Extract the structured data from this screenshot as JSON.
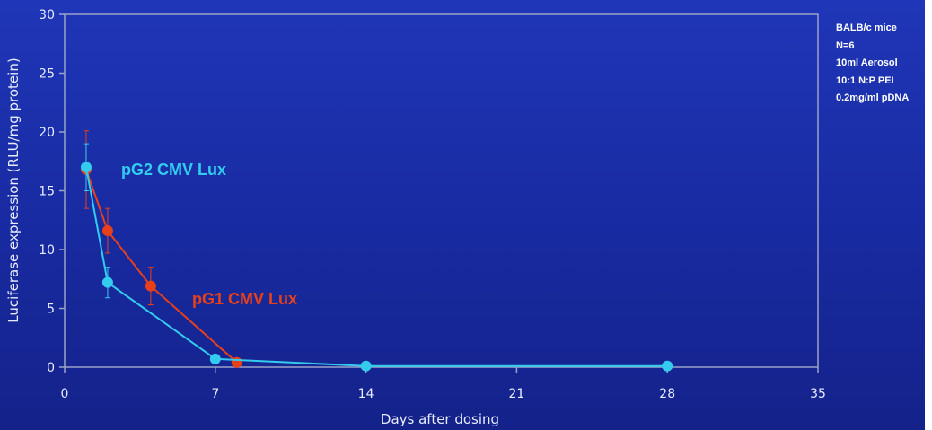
{
  "chart_data": {
    "type": "line",
    "title": "",
    "xlabel": "Days after dosing",
    "ylabel": "Luciferase expression (RLU/mg protein)",
    "xlim": [
      0,
      35
    ],
    "ylim": [
      0,
      30
    ],
    "xticks": [
      0,
      7,
      14,
      21,
      28,
      35
    ],
    "yticks": [
      0,
      5,
      10,
      15,
      20,
      25,
      30
    ],
    "grid": false,
    "series": [
      {
        "name": "pG1 CMV Lux",
        "color": "#e8401a",
        "x": [
          1,
          2,
          4,
          8
        ],
        "y": [
          16.8,
          11.6,
          6.9,
          0.4
        ],
        "error": [
          3.3,
          1.9,
          1.6,
          0
        ]
      },
      {
        "name": "pG2 CMV Lux",
        "color": "#33ccee",
        "x": [
          1,
          2,
          7,
          14,
          28
        ],
        "y": [
          17.0,
          7.2,
          0.7,
          0.1,
          0.1
        ],
        "error": [
          2.0,
          1.3,
          0,
          0,
          0
        ]
      }
    ]
  },
  "notes": [
    "BALB/c mice",
    "N=6",
    "10ml Aerosol",
    "10:1 N:P PEI",
    "0.2mg/ml pDNA"
  ]
}
